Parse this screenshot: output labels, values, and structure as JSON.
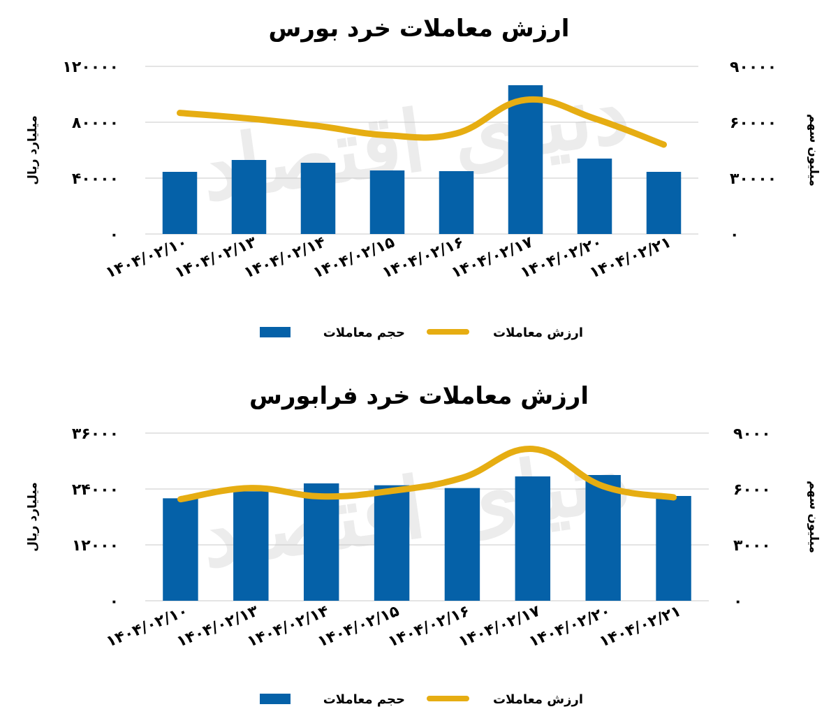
{
  "colors": {
    "bar": "#0561a8",
    "line": "#e6ad12",
    "grid": "#c8c8c8"
  },
  "chart_data": [
    {
      "type": "bar",
      "title": "ارزش معاملات خرد بورس",
      "categories": [
        "۱۴۰۴/۰۲/۱۰",
        "۱۴۰۴/۰۲/۱۳",
        "۱۴۰۴/۰۲/۱۴",
        "۱۴۰۴/۰۲/۱۵",
        "۱۴۰۴/۰۲/۱۶",
        "۱۴۰۴/۰۲/۱۷",
        "۱۴۰۴/۰۲/۲۰",
        "۱۴۰۴/۰۲/۲۱"
      ],
      "ylabel_left": "میلیارد ریال",
      "ylabel_right": "میلیون سهم",
      "y_left": {
        "min": 0,
        "max": 120000,
        "ticks": [
          0,
          40000,
          80000,
          120000
        ],
        "tick_labels": [
          "۰",
          "۴۰۰۰۰",
          "۸۰۰۰۰",
          "۱۲۰۰۰۰"
        ]
      },
      "y_right": {
        "min": 0,
        "max": 90000,
        "ticks": [
          0,
          30000,
          60000,
          90000
        ],
        "tick_labels": [
          "۰",
          "۳۰۰۰۰",
          "۶۰۰۰۰",
          "۹۰۰۰۰"
        ]
      },
      "grid": true,
      "legend_position": "bottom",
      "series": [
        {
          "name": "حجم معاملات",
          "type": "bar",
          "axis": "left",
          "values": [
            44500,
            53000,
            51000,
            45500,
            45000,
            106500,
            54000,
            44500
          ]
        },
        {
          "name": "ارزش معاملات",
          "type": "line",
          "axis": "right",
          "values": [
            65000,
            62000,
            58000,
            53000,
            54000,
            72000,
            62000,
            48000
          ]
        }
      ]
    },
    {
      "type": "bar",
      "title": "ارزش معاملات خرد فرابورس",
      "categories": [
        "۱۴۰۴/۰۲/۱۰",
        "۱۴۰۴/۰۲/۱۳",
        "۱۴۰۴/۰۲/۱۴",
        "۱۴۰۴/۰۲/۱۵",
        "۱۴۰۴/۰۲/۱۶",
        "۱۴۰۴/۰۲/۱۷",
        "۱۴۰۴/۰۲/۲۰",
        "۱۴۰۴/۰۲/۲۱"
      ],
      "ylabel_left": "میلیارد ریال",
      "ylabel_right": "میلیون سهم",
      "y_left": {
        "min": 0,
        "max": 36000,
        "ticks": [
          0,
          12000,
          24000,
          36000
        ],
        "tick_labels": [
          "۰",
          "۱۲۰۰۰",
          "۲۴۰۰۰",
          "۳۶۰۰۰"
        ]
      },
      "y_right": {
        "min": 0,
        "max": 9000,
        "ticks": [
          0,
          3000,
          6000,
          9000
        ],
        "tick_labels": [
          "۰",
          "۳۰۰۰",
          "۶۰۰۰",
          "۹۰۰۰"
        ]
      },
      "grid": true,
      "legend_position": "bottom",
      "series": [
        {
          "name": "حجم معاملات",
          "type": "bar",
          "axis": "left",
          "values": [
            22000,
            23500,
            25200,
            24800,
            24200,
            26700,
            27000,
            22500
          ]
        },
        {
          "name": "ارزش معاملات",
          "type": "line",
          "axis": "right",
          "values": [
            5450,
            6050,
            5600,
            5900,
            6600,
            8150,
            6150,
            5550
          ]
        }
      ]
    }
  ]
}
